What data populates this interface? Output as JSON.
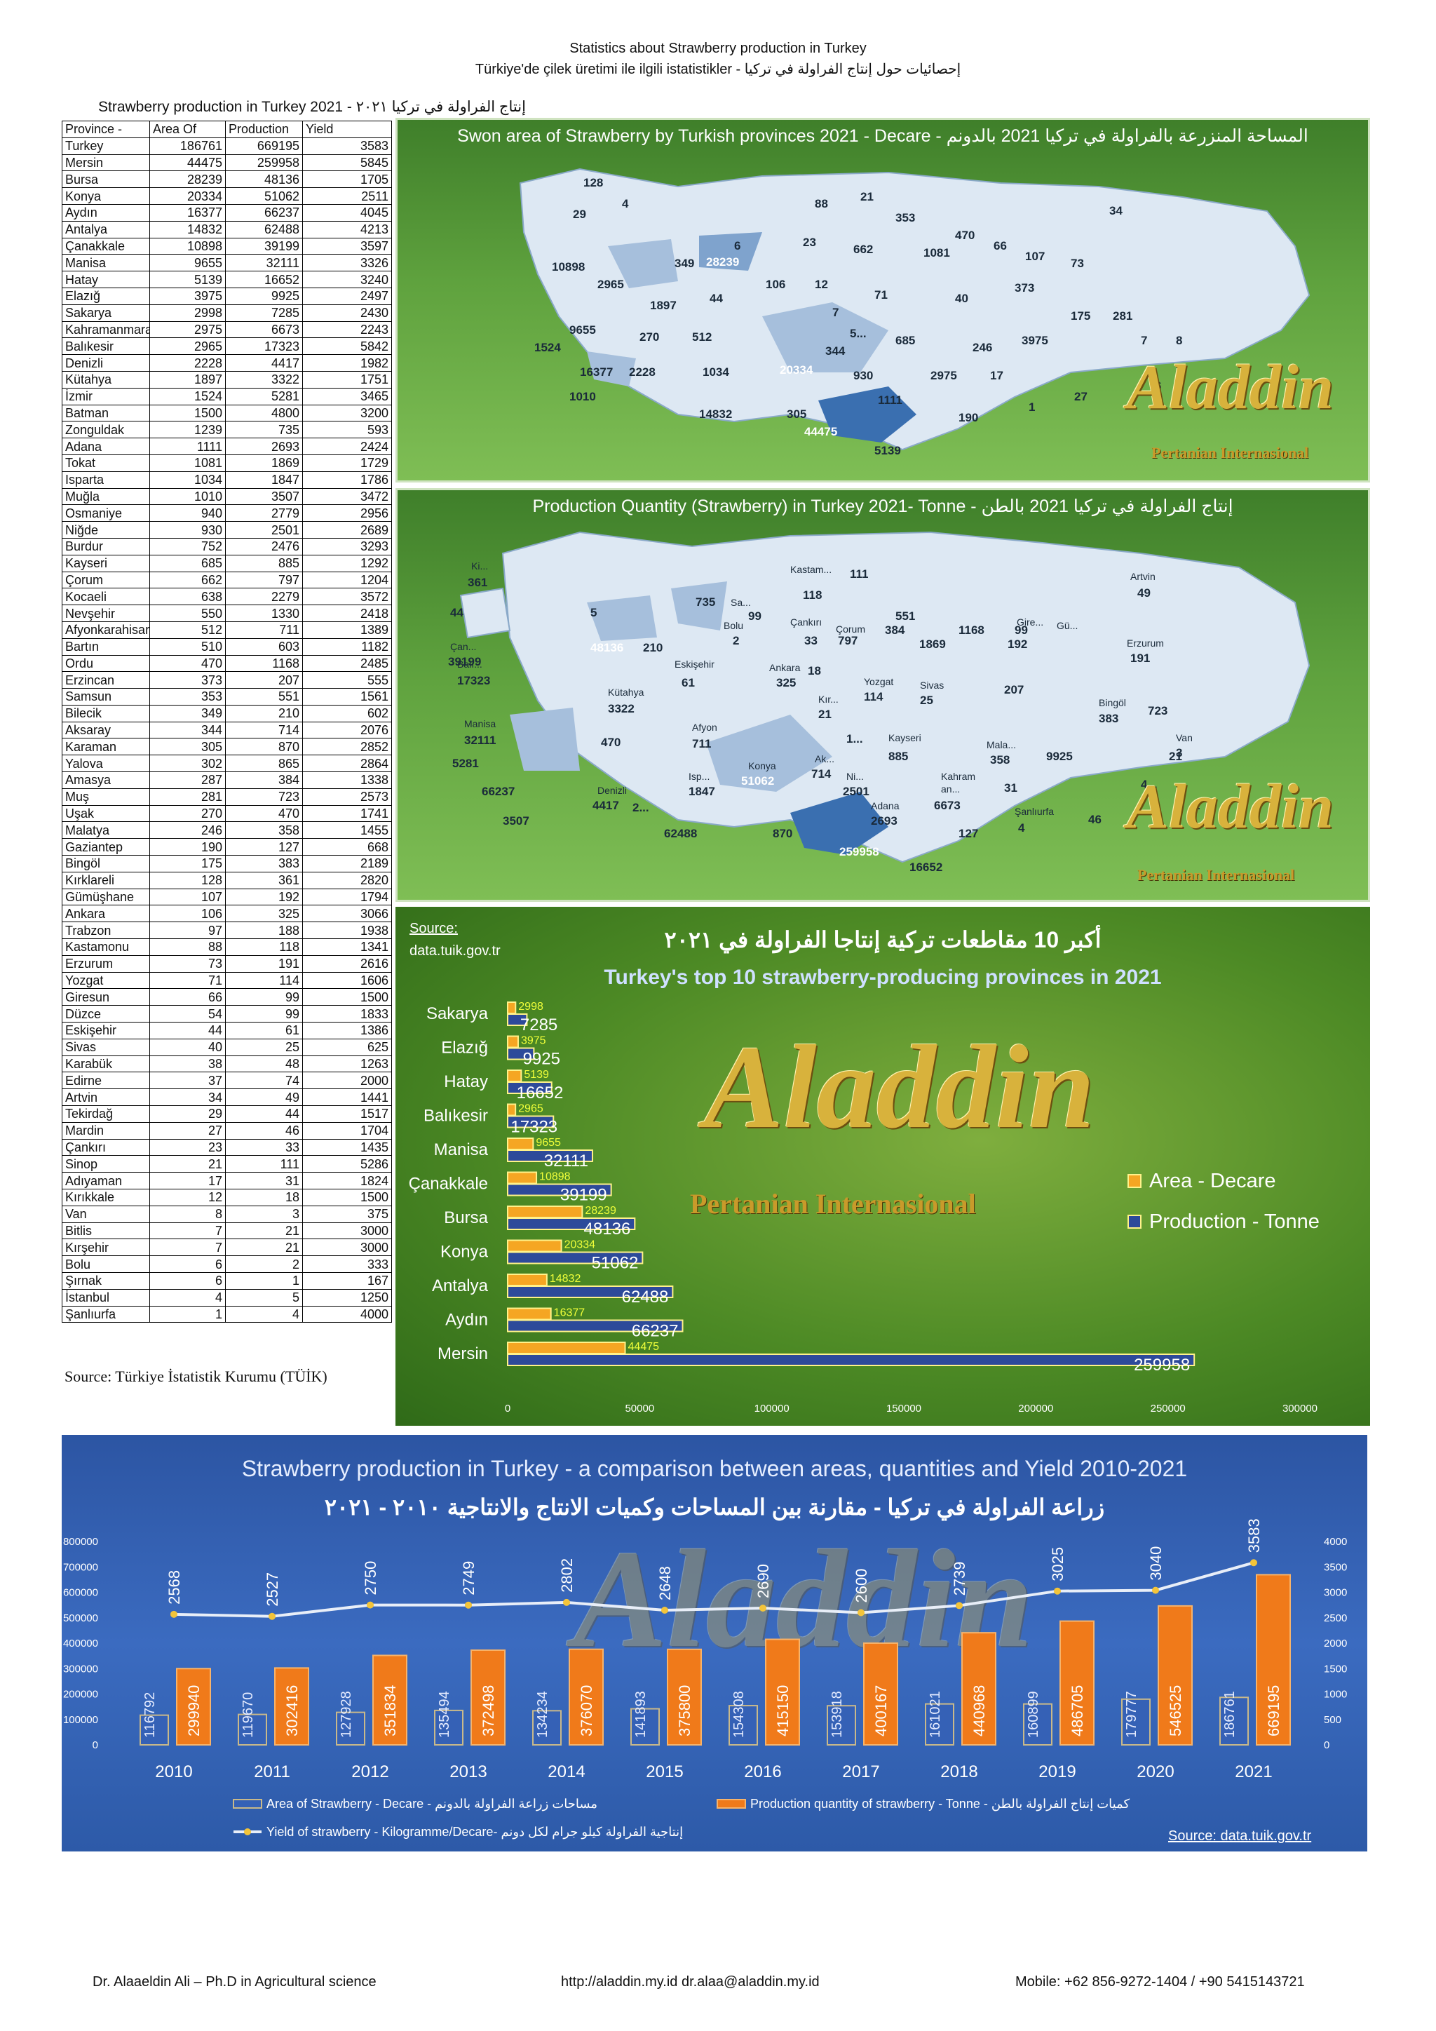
{
  "header": {
    "line1": "Statistics about Strawberry production in Turkey",
    "line2": "Türkiye'de çilek üretimi ile ilgili istatistikler - إحصائيات حول إنتاج الفراولة في تركيا"
  },
  "province_table": {
    "title": "Strawberry production in Turkey 2021 -  إنتاج الفراولة في تركيا ٢٠٢١",
    "columns": [
      "Province -",
      "Area Of",
      "Production",
      "Yield"
    ],
    "rows": [
      [
        "Turkey",
        "186761",
        "669195",
        "3583"
      ],
      [
        "Mersin",
        "44475",
        "259958",
        "5845"
      ],
      [
        "Bursa",
        "28239",
        "48136",
        "1705"
      ],
      [
        "Konya",
        "20334",
        "51062",
        "2511"
      ],
      [
        "Aydın",
        "16377",
        "66237",
        "4045"
      ],
      [
        "Antalya",
        "14832",
        "62488",
        "4213"
      ],
      [
        "Çanakkale",
        "10898",
        "39199",
        "3597"
      ],
      [
        "Manisa",
        "9655",
        "32111",
        "3326"
      ],
      [
        "Hatay",
        "5139",
        "16652",
        "3240"
      ],
      [
        "Elazığ",
        "3975",
        "9925",
        "2497"
      ],
      [
        "Sakarya",
        "2998",
        "7285",
        "2430"
      ],
      [
        "Kahramanmaraş",
        "2975",
        "6673",
        "2243"
      ],
      [
        "Balıkesir",
        "2965",
        "17323",
        "5842"
      ],
      [
        "Denizli",
        "2228",
        "4417",
        "1982"
      ],
      [
        "Kütahya",
        "1897",
        "3322",
        "1751"
      ],
      [
        "İzmir",
        "1524",
        "5281",
        "3465"
      ],
      [
        "Batman",
        "1500",
        "4800",
        "3200"
      ],
      [
        "Zonguldak",
        "1239",
        "735",
        "593"
      ],
      [
        "Adana",
        "1111",
        "2693",
        "2424"
      ],
      [
        "Tokat",
        "1081",
        "1869",
        "1729"
      ],
      [
        "Isparta",
        "1034",
        "1847",
        "1786"
      ],
      [
        "Muğla",
        "1010",
        "3507",
        "3472"
      ],
      [
        "Osmaniye",
        "940",
        "2779",
        "2956"
      ],
      [
        "Niğde",
        "930",
        "2501",
        "2689"
      ],
      [
        "Burdur",
        "752",
        "2476",
        "3293"
      ],
      [
        "Kayseri",
        "685",
        "885",
        "1292"
      ],
      [
        "Çorum",
        "662",
        "797",
        "1204"
      ],
      [
        "Kocaeli",
        "638",
        "2279",
        "3572"
      ],
      [
        "Nevşehir",
        "550",
        "1330",
        "2418"
      ],
      [
        "Afyonkarahisar",
        "512",
        "711",
        "1389"
      ],
      [
        "Bartın",
        "510",
        "603",
        "1182"
      ],
      [
        "Ordu",
        "470",
        "1168",
        "2485"
      ],
      [
        "Erzincan",
        "373",
        "207",
        "555"
      ],
      [
        "Samsun",
        "353",
        "551",
        "1561"
      ],
      [
        "Bilecik",
        "349",
        "210",
        "602"
      ],
      [
        "Aksaray",
        "344",
        "714",
        "2076"
      ],
      [
        "Karaman",
        "305",
        "870",
        "2852"
      ],
      [
        "Yalova",
        "302",
        "865",
        "2864"
      ],
      [
        "Amasya",
        "287",
        "384",
        "1338"
      ],
      [
        "Muş",
        "281",
        "723",
        "2573"
      ],
      [
        "Uşak",
        "270",
        "470",
        "1741"
      ],
      [
        "Malatya",
        "246",
        "358",
        "1455"
      ],
      [
        "Gaziantep",
        "190",
        "127",
        "668"
      ],
      [
        "Bingöl",
        "175",
        "383",
        "2189"
      ],
      [
        "Kırklareli",
        "128",
        "361",
        "2820"
      ],
      [
        "Gümüşhane",
        "107",
        "192",
        "1794"
      ],
      [
        "Ankara",
        "106",
        "325",
        "3066"
      ],
      [
        "Trabzon",
        "97",
        "188",
        "1938"
      ],
      [
        "Kastamonu",
        "88",
        "118",
        "1341"
      ],
      [
        "Erzurum",
        "73",
        "191",
        "2616"
      ],
      [
        "Yozgat",
        "71",
        "114",
        "1606"
      ],
      [
        "Giresun",
        "66",
        "99",
        "1500"
      ],
      [
        "Düzce",
        "54",
        "99",
        "1833"
      ],
      [
        "Eskişehir",
        "44",
        "61",
        "1386"
      ],
      [
        "Sivas",
        "40",
        "25",
        "625"
      ],
      [
        "Karabük",
        "38",
        "48",
        "1263"
      ],
      [
        "Edirne",
        "37",
        "74",
        "2000"
      ],
      [
        "Artvin",
        "34",
        "49",
        "1441"
      ],
      [
        "Tekirdağ",
        "29",
        "44",
        "1517"
      ],
      [
        "Mardin",
        "27",
        "46",
        "1704"
      ],
      [
        "Çankırı",
        "23",
        "33",
        "1435"
      ],
      [
        "Sinop",
        "21",
        "111",
        "5286"
      ],
      [
        "Adıyaman",
        "17",
        "31",
        "1824"
      ],
      [
        "Kırıkkale",
        "12",
        "18",
        "1500"
      ],
      [
        "Van",
        "8",
        "3",
        "375"
      ],
      [
        "Bitlis",
        "7",
        "21",
        "3000"
      ],
      [
        "Kırşehir",
        "7",
        "21",
        "3000"
      ],
      [
        "Bolu",
        "6",
        "2",
        "333"
      ],
      [
        "Şırnak",
        "6",
        "1",
        "167"
      ],
      [
        "İstanbul",
        "4",
        "5",
        "1250"
      ],
      [
        "Şanlıurfa",
        "1",
        "4",
        "4000"
      ]
    ],
    "source": "Source: Türkiye İstatistik Kurumu (TÜİK)"
  },
  "map_area": {
    "title": "Swon area of  Strawberry by Turkish provinces 2021 - Decare - المساحة المنزرعة بالفراولة في تركيا 2021 بالدونم",
    "labels": [
      "128",
      "4",
      "29",
      "88",
      "21",
      "353",
      "34",
      "6",
      "23",
      "662",
      "470",
      "66",
      "107",
      "73",
      "10898",
      "28239",
      "349",
      "1081",
      "2965",
      "106",
      "12",
      "71",
      "40",
      "373",
      "1897",
      "44",
      "7",
      "175",
      "281",
      "9655",
      "270",
      "512",
      "5...",
      "685",
      "246",
      "3975",
      "7",
      "8",
      "1524",
      "344",
      "16377",
      "2228",
      "1034",
      "20334",
      "930",
      "2975",
      "17",
      "1010",
      "1111",
      "27",
      "6",
      "14832",
      "305",
      "190",
      "1",
      "44475",
      "5139"
    ]
  },
  "map_production": {
    "title": "Production Quantity (Strawberry) in Turkey 2021- Tonne - إنتاج الفراولة في تركيا 2021 بالطن",
    "labels": [
      "Ki...",
      "361",
      "44",
      "5",
      "735",
      "Kastam...",
      "111",
      "Sa...",
      "118",
      "Artvin",
      "49",
      "99",
      "Bolu",
      "2",
      "551",
      "Çankırı",
      "Çorum",
      "384",
      "1168",
      "33",
      "797",
      "1869",
      "99",
      "192",
      "Gire...",
      "Gü...",
      "Erzurum",
      "191",
      "Çan...",
      "39199",
      "48136",
      "210",
      "Balı...",
      "17323",
      "Eskişehir",
      "61",
      "Ankara",
      "325",
      "18",
      "Yozgat",
      "114",
      "Sivas",
      "25",
      "207",
      "Kütahya",
      "3322",
      "Kır...",
      "21",
      "Bingöl",
      "383",
      "723",
      "Manisa",
      "32111",
      "470",
      "Afyon",
      "711",
      "1...",
      "Kayseri",
      "885",
      "Mala...",
      "358",
      "9925",
      "21",
      "Van",
      "3",
      "5281",
      "Ak...",
      "714",
      "Konya",
      "51062",
      "Ni...",
      "2501",
      "Kahram",
      "an...",
      "6673",
      "31",
      "4...",
      "66237",
      "Denizli",
      "4417",
      "Isp...",
      "1847",
      "2...",
      "Adana",
      "2693",
      "Şanlıurfa",
      "4",
      "46",
      "1",
      "3507",
      "62488",
      "870",
      "127",
      "259958",
      "16652"
    ]
  },
  "watermark": {
    "name": "Aladdin",
    "sub": "Pertanian Internasional"
  },
  "bar_chart": {
    "source_label": "Source:",
    "source_url": "data.tuik.gov.tr",
    "title_ar": "أكبر 10 مقاطعات تركية إنتاجا الفراولة في ٢٠٢١",
    "title_en": "Turkey's top 10 strawberry-producing provinces in 2021"
  },
  "chart_data": [
    {
      "type": "bar",
      "orientation": "horizontal",
      "categories": [
        "Sakarya",
        "Elazığ",
        "Hatay",
        "Balıkesir",
        "Manisa",
        "Çanakkale",
        "Bursa",
        "Konya",
        "Antalya",
        "Aydın",
        "Mersin"
      ],
      "series": [
        {
          "name": "Area - Decare",
          "values": [
            2998,
            3975,
            5139,
            2965,
            9655,
            10898,
            28239,
            20334,
            14832,
            16377,
            44475
          ],
          "color": "#f5a623"
        },
        {
          "name": "Production - Tonne",
          "values": [
            7285,
            9925,
            16652,
            17323,
            32111,
            39199,
            48136,
            51062,
            62488,
            66237,
            259958
          ],
          "color": "#2d4a9a"
        }
      ],
      "xlim": [
        0,
        300000
      ],
      "xticks": [
        "0",
        "50000",
        "100000",
        "150000",
        "200000",
        "250000",
        "300000"
      ],
      "legend": "right"
    },
    {
      "type": "bar+line",
      "title": "Strawberry production in Turkey - a comparison between areas, quantities and Yield 2010-2021",
      "title_ar": "زراعة الفراولة في تركيا - مقارنة بين المساحات وكميات الانتاج والانتاجية ٢٠١٠ - ٢٠٢١",
      "categories": [
        "2010",
        "2011",
        "2012",
        "2013",
        "2014",
        "2015",
        "2016",
        "2017",
        "2018",
        "2019",
        "2020",
        "2021"
      ],
      "series": [
        {
          "name": "Area of Strawberry - Decare - مساحات زراعة الفراولة بالدونم",
          "values": [
            116792,
            119670,
            127928,
            135494,
            134234,
            141893,
            154308,
            153918,
            161021,
            160899,
            179777,
            186761
          ],
          "axis": "left",
          "color": "#b9c6e6"
        },
        {
          "name": "Production quantity of strawberry - Tonne - كميات إنتاج الفراولة بالطن",
          "values": [
            299940,
            302416,
            351834,
            372498,
            376070,
            375800,
            415150,
            400167,
            440968,
            486705,
            546525,
            669195
          ],
          "axis": "left",
          "color": "#f07a1a"
        },
        {
          "name": "Yield of strawberry - Kilogramme/Decare- إنتاجية الفراولة كيلو جرام لكل دونم",
          "values": [
            2568,
            2527,
            2750,
            2749,
            2802,
            2648,
            2690,
            2600,
            2739,
            3025,
            3040,
            3583
          ],
          "axis": "right",
          "color": "#e8eef8"
        }
      ],
      "ylim_left": [
        0,
        800000
      ],
      "yticks_left": [
        "0",
        "100000",
        "200000",
        "300000",
        "400000",
        "500000",
        "600000",
        "700000",
        "800000"
      ],
      "ylim_right": [
        0,
        4000
      ],
      "yticks_right": [
        "0",
        "500",
        "1000",
        "1500",
        "2000",
        "2500",
        "3000",
        "3500",
        "4000"
      ],
      "source": "Source: data.tuik.gov.tr"
    }
  ],
  "footer": {
    "author": "Dr. Alaaeldin Ali – Ph.D in Agricultural science",
    "web": "http://aladdin.my.id   dr.alaa@aladdin.my.id",
    "mobile": "Mobile: +62 856-9272-1404 / +90 5415143721"
  }
}
